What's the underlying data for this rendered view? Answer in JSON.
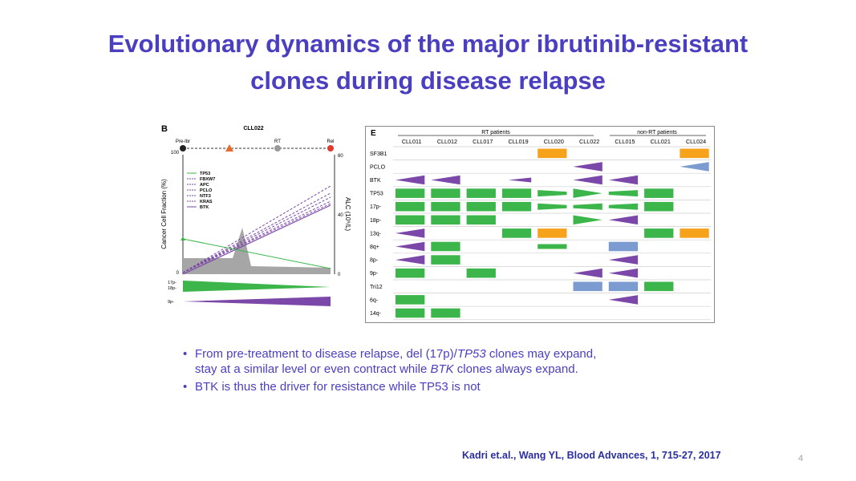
{
  "slide": {
    "title_line1": "Evolutionary dynamics of the major ibrutinib-resistant",
    "title_line2": "clones during disease relapse",
    "bullet1_pre": "From pre-treatment to disease relapse, del (17p)/",
    "bullet1_tp53": "TP53",
    "bullet1_mid": " clones may expand,",
    "bullet1_line2_pre": "stay at a similar level or even contract while ",
    "bullet1_btk": "BTK",
    "bullet1_line2_post": " clones always expand.",
    "bullet2": "BTK is thus the driver for resistance while TP53 is not",
    "bullet_symbol": "•",
    "citation": "Kadri et.al.,  Wang YL, Blood Advances, 1, 715-27, 2017",
    "page_number": "4"
  },
  "panelB": {
    "letter": "B",
    "patient": "CLL022",
    "timepoints": [
      "Pre-Ibr",
      "RT",
      "Rel"
    ],
    "y_label": "Cancer Cell Fraction (%)",
    "y_ticks": [
      "100",
      "0"
    ],
    "y2_label": "ALC (10⁹/L)",
    "y2_ticks": [
      "80",
      "40",
      "0"
    ],
    "legend": [
      "TP53",
      "FBXW7",
      "APC",
      "PCLO",
      "NTF3",
      "KRAS",
      "BTK"
    ],
    "bar_label_1a": "17p-",
    "bar_label_1b": "18p-",
    "bar_label_2": "9p-"
  },
  "panelE": {
    "letter": "E",
    "group_rt": "RT patients",
    "group_nonrt": "non-RT patients",
    "columns": [
      "CLL011",
      "CLL012",
      "CLL017",
      "CLL019",
      "CLL020",
      "CLL022",
      "CLL015",
      "CLL021",
      "CLL024"
    ],
    "rows": [
      "SF3B1",
      "PCLO",
      "BTK",
      "TP53",
      "17p-",
      "18p-",
      "13q-",
      "8q+",
      "8p-",
      "9p-",
      "Tri12",
      "6q-",
      "14q-"
    ]
  },
  "colors": {
    "title": "#4a3fc0",
    "green": "#3cb54a",
    "purple": "#7b47a8",
    "orange": "#f7a21b",
    "blue": "#7b9bd1",
    "citation": "#2b2fa0"
  }
}
